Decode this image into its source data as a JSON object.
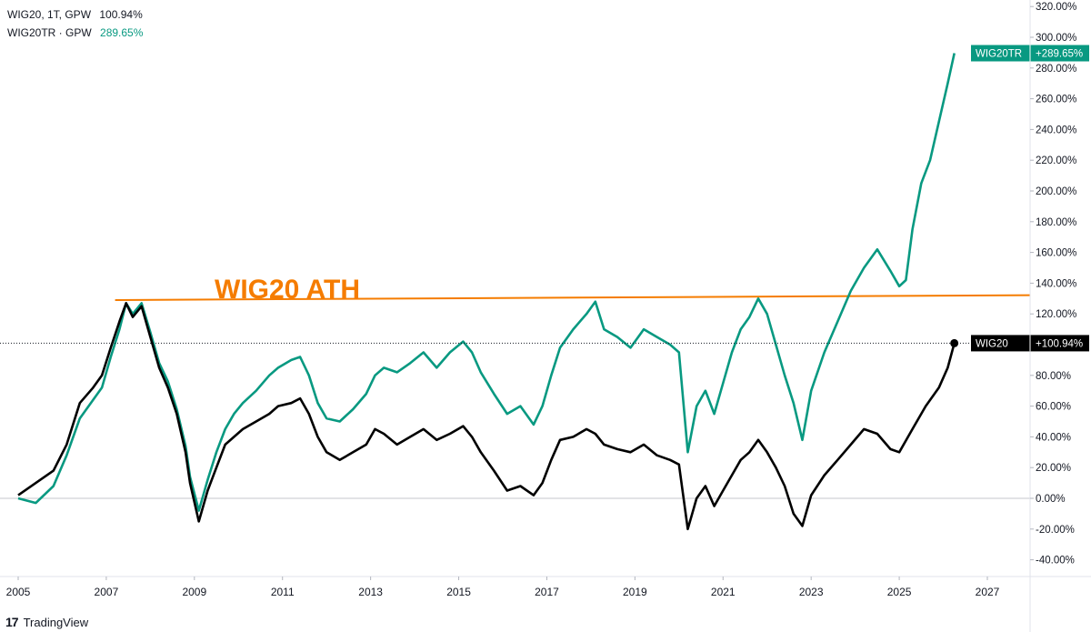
{
  "legend": {
    "wig20": {
      "label": "WIG20, 1T, GPW",
      "value": "100.94%"
    },
    "wig20tr": {
      "label": "WIG20TR · GPW",
      "value": "289.65%"
    }
  },
  "brand": {
    "mark": "17",
    "name": "TradingView"
  },
  "annotation": {
    "text": "WIG20 ATH",
    "color": "#F57C00",
    "level": 131
  },
  "colors": {
    "wig20": "#000000",
    "wig20tr": "#089981",
    "grid": "#e0e3eb",
    "axis_text": "#131722"
  },
  "chart_data": {
    "type": "line",
    "x_axis": {
      "ticks": [
        "2005",
        "2007",
        "2009",
        "2011",
        "2013",
        "2015",
        "2017",
        "2019",
        "2021",
        "2023",
        "2025",
        "2027"
      ],
      "range": [
        2004.9,
        2027.5
      ]
    },
    "y_axis": {
      "unit": "%",
      "range": [
        -45,
        330
      ],
      "ticks": [
        "320.00%",
        "300.00%",
        "280.00%",
        "260.00%",
        "240.00%",
        "220.00%",
        "200.00%",
        "180.00%",
        "160.00%",
        "140.00%",
        "120.00%",
        "100.00%",
        "80.00%",
        "60.00%",
        "40.00%",
        "20.00%",
        "0.00%",
        "-20.00%",
        "-40.00%"
      ],
      "tick_values": [
        320,
        300,
        280,
        260,
        240,
        220,
        200,
        180,
        160,
        140,
        120,
        100,
        80,
        60,
        40,
        20,
        0,
        -20,
        -40
      ]
    },
    "series": [
      {
        "name": "WIG20",
        "label": "WIG20",
        "last_label": "+100.94%",
        "last": 100.94,
        "points": [
          [
            2005.0,
            2
          ],
          [
            2005.4,
            10
          ],
          [
            2005.8,
            18
          ],
          [
            2006.1,
            35
          ],
          [
            2006.4,
            62
          ],
          [
            2006.7,
            72
          ],
          [
            2006.9,
            80
          ],
          [
            2007.1,
            98
          ],
          [
            2007.3,
            115
          ],
          [
            2007.45,
            127
          ],
          [
            2007.6,
            118
          ],
          [
            2007.8,
            125
          ],
          [
            2008.0,
            105
          ],
          [
            2008.2,
            85
          ],
          [
            2008.4,
            72
          ],
          [
            2008.6,
            55
          ],
          [
            2008.8,
            30
          ],
          [
            2008.9,
            10
          ],
          [
            2009.1,
            -15
          ],
          [
            2009.3,
            5
          ],
          [
            2009.5,
            20
          ],
          [
            2009.7,
            35
          ],
          [
            2009.9,
            40
          ],
          [
            2010.1,
            45
          ],
          [
            2010.4,
            50
          ],
          [
            2010.7,
            55
          ],
          [
            2010.9,
            60
          ],
          [
            2011.2,
            62
          ],
          [
            2011.4,
            65
          ],
          [
            2011.6,
            55
          ],
          [
            2011.8,
            40
          ],
          [
            2012.0,
            30
          ],
          [
            2012.3,
            25
          ],
          [
            2012.6,
            30
          ],
          [
            2012.9,
            35
          ],
          [
            2013.1,
            45
          ],
          [
            2013.3,
            42
          ],
          [
            2013.6,
            35
          ],
          [
            2013.9,
            40
          ],
          [
            2014.2,
            45
          ],
          [
            2014.5,
            38
          ],
          [
            2014.8,
            42
          ],
          [
            2015.1,
            47
          ],
          [
            2015.3,
            40
          ],
          [
            2015.5,
            30
          ],
          [
            2015.8,
            18
          ],
          [
            2016.1,
            5
          ],
          [
            2016.4,
            8
          ],
          [
            2016.7,
            2
          ],
          [
            2016.9,
            10
          ],
          [
            2017.1,
            25
          ],
          [
            2017.3,
            38
          ],
          [
            2017.6,
            40
          ],
          [
            2017.9,
            45
          ],
          [
            2018.1,
            42
          ],
          [
            2018.3,
            35
          ],
          [
            2018.6,
            32
          ],
          [
            2018.9,
            30
          ],
          [
            2019.2,
            35
          ],
          [
            2019.5,
            28
          ],
          [
            2019.8,
            25
          ],
          [
            2020.0,
            22
          ],
          [
            2020.2,
            -20
          ],
          [
            2020.4,
            0
          ],
          [
            2020.6,
            8
          ],
          [
            2020.8,
            -5
          ],
          [
            2021.0,
            5
          ],
          [
            2021.2,
            15
          ],
          [
            2021.4,
            25
          ],
          [
            2021.6,
            30
          ],
          [
            2021.8,
            38
          ],
          [
            2022.0,
            30
          ],
          [
            2022.2,
            20
          ],
          [
            2022.4,
            8
          ],
          [
            2022.6,
            -10
          ],
          [
            2022.8,
            -18
          ],
          [
            2023.0,
            2
          ],
          [
            2023.3,
            15
          ],
          [
            2023.6,
            25
          ],
          [
            2023.9,
            35
          ],
          [
            2024.2,
            45
          ],
          [
            2024.5,
            42
          ],
          [
            2024.8,
            32
          ],
          [
            2025.0,
            30
          ],
          [
            2025.3,
            45
          ],
          [
            2025.6,
            60
          ],
          [
            2025.9,
            72
          ],
          [
            2026.1,
            85
          ],
          [
            2026.25,
            100.94
          ]
        ]
      },
      {
        "name": "WIG20TR",
        "label": "WIG20TR",
        "last_label": "+289.65%",
        "last": 289.65,
        "points": [
          [
            2005.0,
            0
          ],
          [
            2005.4,
            -3
          ],
          [
            2005.8,
            8
          ],
          [
            2006.1,
            28
          ],
          [
            2006.4,
            52
          ],
          [
            2006.7,
            64
          ],
          [
            2006.9,
            72
          ],
          [
            2007.1,
            92
          ],
          [
            2007.3,
            110
          ],
          [
            2007.45,
            127
          ],
          [
            2007.6,
            120
          ],
          [
            2007.8,
            127
          ],
          [
            2008.0,
            108
          ],
          [
            2008.2,
            88
          ],
          [
            2008.4,
            76
          ],
          [
            2008.6,
            58
          ],
          [
            2008.8,
            34
          ],
          [
            2008.9,
            14
          ],
          [
            2009.1,
            -8
          ],
          [
            2009.3,
            12
          ],
          [
            2009.5,
            30
          ],
          [
            2009.7,
            45
          ],
          [
            2009.9,
            55
          ],
          [
            2010.1,
            62
          ],
          [
            2010.4,
            70
          ],
          [
            2010.7,
            80
          ],
          [
            2010.9,
            85
          ],
          [
            2011.2,
            90
          ],
          [
            2011.4,
            92
          ],
          [
            2011.6,
            80
          ],
          [
            2011.8,
            62
          ],
          [
            2012.0,
            52
          ],
          [
            2012.3,
            50
          ],
          [
            2012.6,
            58
          ],
          [
            2012.9,
            68
          ],
          [
            2013.1,
            80
          ],
          [
            2013.3,
            85
          ],
          [
            2013.6,
            82
          ],
          [
            2013.9,
            88
          ],
          [
            2014.2,
            95
          ],
          [
            2014.5,
            85
          ],
          [
            2014.8,
            95
          ],
          [
            2015.1,
            102
          ],
          [
            2015.3,
            95
          ],
          [
            2015.5,
            82
          ],
          [
            2015.8,
            68
          ],
          [
            2016.1,
            55
          ],
          [
            2016.4,
            60
          ],
          [
            2016.7,
            48
          ],
          [
            2016.9,
            60
          ],
          [
            2017.1,
            80
          ],
          [
            2017.3,
            98
          ],
          [
            2017.6,
            110
          ],
          [
            2017.9,
            120
          ],
          [
            2018.1,
            128
          ],
          [
            2018.3,
            110
          ],
          [
            2018.6,
            105
          ],
          [
            2018.9,
            98
          ],
          [
            2019.2,
            110
          ],
          [
            2019.5,
            105
          ],
          [
            2019.8,
            100
          ],
          [
            2020.0,
            95
          ],
          [
            2020.2,
            30
          ],
          [
            2020.4,
            60
          ],
          [
            2020.6,
            70
          ],
          [
            2020.8,
            55
          ],
          [
            2021.0,
            75
          ],
          [
            2021.2,
            95
          ],
          [
            2021.4,
            110
          ],
          [
            2021.6,
            118
          ],
          [
            2021.8,
            130
          ],
          [
            2022.0,
            120
          ],
          [
            2022.2,
            100
          ],
          [
            2022.4,
            80
          ],
          [
            2022.6,
            62
          ],
          [
            2022.8,
            38
          ],
          [
            2023.0,
            70
          ],
          [
            2023.3,
            95
          ],
          [
            2023.6,
            115
          ],
          [
            2023.9,
            135
          ],
          [
            2024.2,
            150
          ],
          [
            2024.5,
            162
          ],
          [
            2024.8,
            148
          ],
          [
            2025.0,
            138
          ],
          [
            2025.15,
            142
          ],
          [
            2025.3,
            175
          ],
          [
            2025.5,
            205
          ],
          [
            2025.7,
            220
          ],
          [
            2025.9,
            245
          ],
          [
            2026.1,
            270
          ],
          [
            2026.25,
            289.65
          ]
        ]
      }
    ]
  }
}
